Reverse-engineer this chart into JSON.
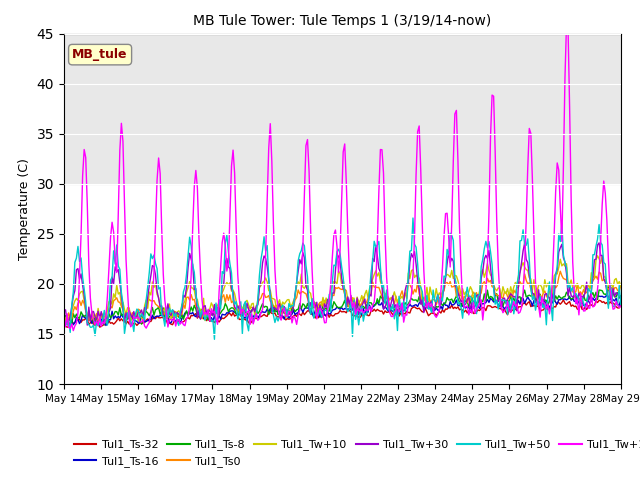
{
  "title": "MB Tule Tower: Tule Temps 1 (3/19/14-now)",
  "ylabel": "Temperature (C)",
  "ylim": [
    10,
    45
  ],
  "yticks": [
    10,
    15,
    20,
    25,
    30,
    35,
    40,
    45
  ],
  "n_days": 15,
  "xtick_labels": [
    "May 14",
    "May 15",
    "May 16",
    "May 17",
    "May 18",
    "May 19",
    "May 20",
    "May 21",
    "May 22",
    "May 23",
    "May 24",
    "May 25",
    "May 26",
    "May 27",
    "May 28",
    "May 29"
  ],
  "shaded_region_color": "#e8e8e8",
  "shaded_region": [
    30,
    45
  ],
  "legend_label": "MB_tule",
  "series_colors": {
    "Tul1_Ts-32": "#cc0000",
    "Tul1_Ts-16": "#0000cc",
    "Tul1_Ts-8": "#00aa00",
    "Tul1_Ts0": "#ff8800",
    "Tul1_Tw+10": "#cccc00",
    "Tul1_Tw+30": "#9900cc",
    "Tul1_Tw+50": "#00cccc",
    "Tul1_Tw+100": "#ff00ff"
  },
  "background_color": "#ffffff",
  "plot_bg_color": "#ffffff"
}
